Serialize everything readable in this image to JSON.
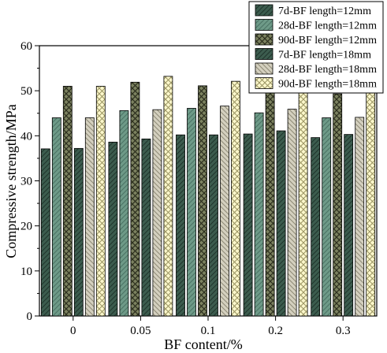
{
  "chart_data": {
    "type": "bar",
    "categories": [
      "0",
      "0.05",
      "0.1",
      "0.2",
      "0.3"
    ],
    "series": [
      {
        "name": "7d-BF length=12mm",
        "values": [
          37.1,
          38.6,
          40.2,
          40.4,
          39.6
        ],
        "color": "#3c5c4e",
        "pattern": "hatch-fwd"
      },
      {
        "name": "28d-BF length=12mm",
        "values": [
          44.0,
          45.6,
          46.1,
          45.1,
          44.0
        ],
        "color": "#6e9a88",
        "pattern": "hatch-fwd-light"
      },
      {
        "name": "90d-BF length=12mm",
        "values": [
          51.0,
          51.9,
          51.1,
          49.9,
          49.3
        ],
        "color": "#6b7050",
        "pattern": "crosshatch"
      },
      {
        "name": "7d-BF length=18mm",
        "values": [
          37.2,
          39.3,
          40.2,
          41.1,
          40.3
        ],
        "color": "#918b6a",
        "pattern": "hatch-fwd"
      },
      {
        "name": "28d-BF length=18mm",
        "values": [
          44.0,
          45.8,
          46.6,
          45.9,
          44.1
        ],
        "color": "#c9c5b3",
        "pattern": "hatch-back"
      },
      {
        "name": "90d-BF length=18mm",
        "values": [
          51.0,
          53.2,
          52.1,
          50.1,
          49.5
        ],
        "color": "#fbf7c4",
        "pattern": "crosshatch-yellow"
      }
    ],
    "xlabel": "BF content/%",
    "ylabel": "Compressive strength/MPa",
    "ylim": [
      0,
      60
    ],
    "yticks": [
      0,
      10,
      20,
      30,
      40,
      50,
      60
    ],
    "legend_position": "top-right",
    "grid": false
  }
}
